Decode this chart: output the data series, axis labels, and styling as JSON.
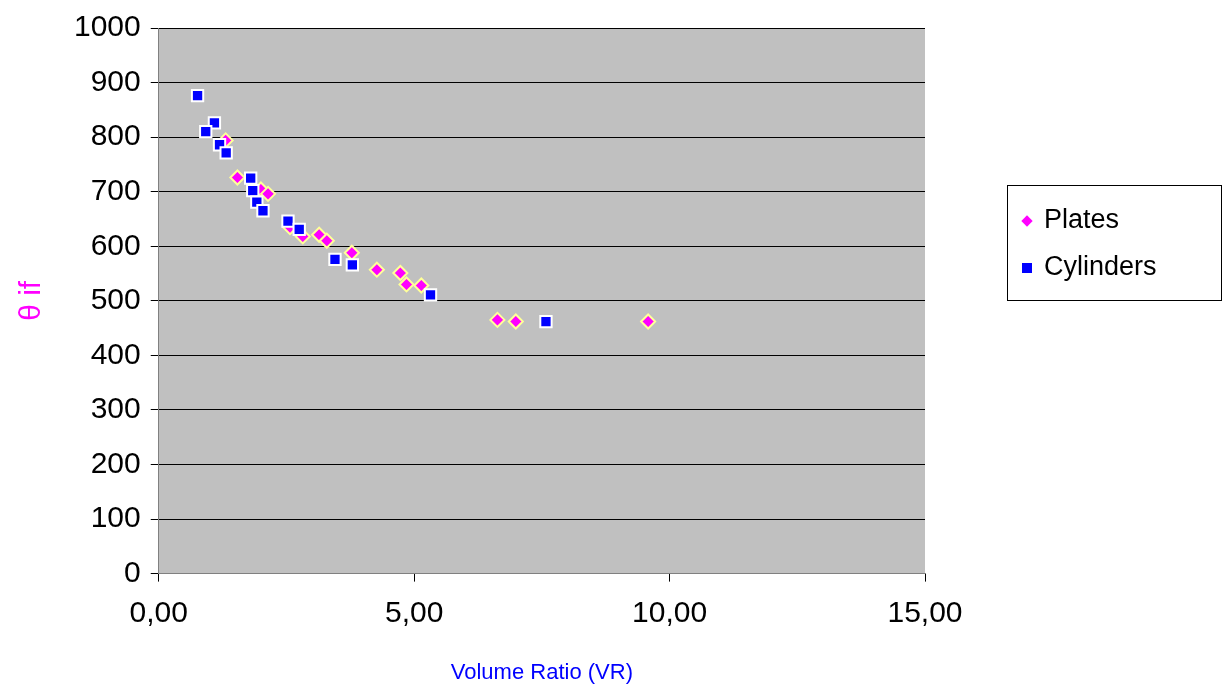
{
  "chart_data": {
    "type": "scatter",
    "xlabel": "Volume Ratio (VR)",
    "ylabel": "θ if",
    "xlim": [
      0,
      15
    ],
    "xticks": [
      {
        "value": 0,
        "label": "0,00"
      },
      {
        "value": 5,
        "label": "5,00"
      },
      {
        "value": 10,
        "label": "10,00"
      },
      {
        "value": 15,
        "label": "15,00"
      }
    ],
    "ylim": [
      0,
      1000
    ],
    "yticks": [
      0,
      100,
      200,
      300,
      400,
      500,
      600,
      700,
      800,
      900,
      1000
    ],
    "grid": "y",
    "legend": "right",
    "series": [
      {
        "name": "Plates",
        "color": "#ff00ff",
        "marker": "diamond",
        "x": [
          1.31,
          1.54,
          2.0,
          2.14,
          2.57,
          2.82,
          3.14,
          3.29,
          3.78,
          4.27,
          4.73,
          4.85,
          5.14,
          6.63,
          6.99,
          9.58
        ],
        "values": [
          794,
          726,
          704,
          696,
          635,
          618,
          621,
          610,
          588,
          557,
          551,
          530,
          528,
          465,
          462,
          462
        ]
      },
      {
        "name": "Cylinders",
        "color": "#0000ff",
        "marker": "square",
        "x": [
          0.76,
          1.09,
          0.92,
          1.19,
          1.32,
          1.8,
          1.84,
          1.92,
          2.04,
          2.53,
          2.75,
          3.45,
          3.79,
          5.32,
          7.58
        ],
        "values": [
          876,
          826,
          810,
          786,
          771,
          725,
          702,
          681,
          665,
          646,
          631,
          576,
          566,
          511,
          462
        ]
      }
    ]
  }
}
